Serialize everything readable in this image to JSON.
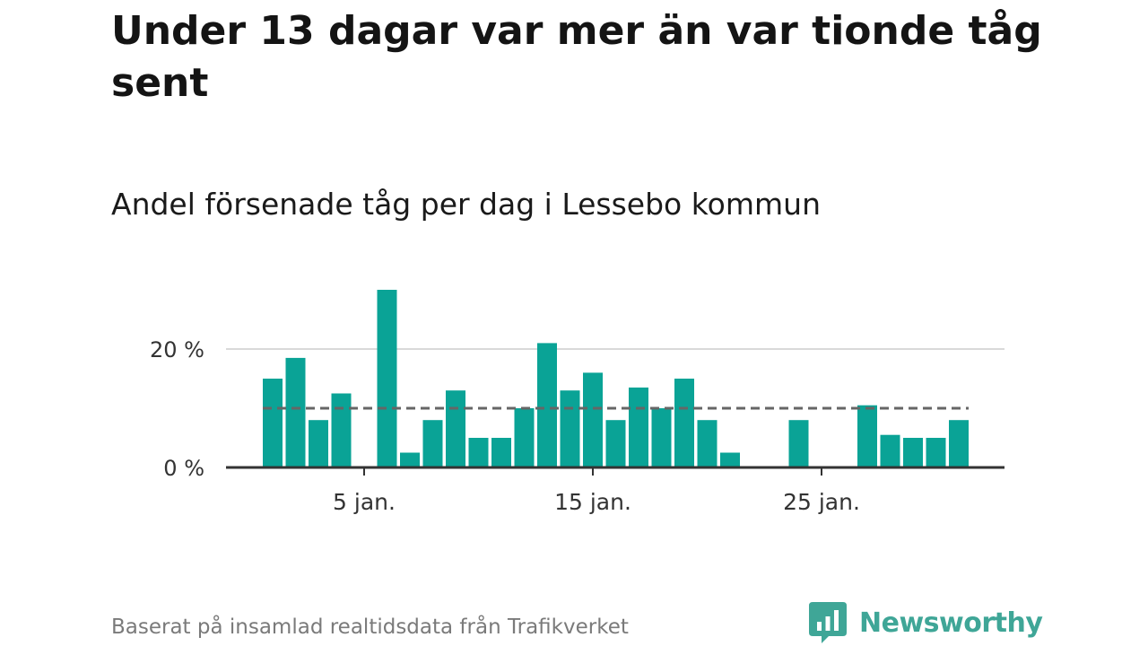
{
  "title": "Under 13 dagar var mer än var tionde tåg sent",
  "subtitle": "Andel försenade tåg per dag i Lessebo kommun",
  "source": "Baserat på insamlad realtidsdata från Trafikverket",
  "logo": {
    "text": "Newsworthy",
    "color": "#3fa697"
  },
  "colors": {
    "bar": "#0aa396",
    "reference_line": "#666666",
    "grid": "#d9d9d9",
    "axis": "#333333"
  },
  "chart_data": {
    "type": "bar",
    "title": "Andel försenade tåg per dag i Lessebo kommun",
    "x": [
      1,
      2,
      3,
      4,
      5,
      6,
      7,
      8,
      9,
      10,
      11,
      12,
      13,
      14,
      15,
      16,
      17,
      18,
      19,
      20,
      21,
      22,
      23,
      24,
      25,
      26,
      27,
      28,
      29,
      30,
      31
    ],
    "values": [
      15,
      18.5,
      8,
      12.5,
      0,
      30,
      2.5,
      8,
      13,
      5,
      5,
      10,
      21,
      13,
      16,
      8,
      13.5,
      10,
      15,
      8,
      2.5,
      0,
      0,
      8,
      0,
      0,
      10.5,
      5.5,
      5,
      5,
      8
    ],
    "x_tick_values": [
      5,
      15,
      25
    ],
    "x_tick_labels": [
      "5 jan.",
      "15 jan.",
      "25 jan."
    ],
    "y_ticks": [
      0,
      20
    ],
    "y_tick_labels": [
      "0 %",
      "20 %"
    ],
    "ylim": [
      0,
      30
    ],
    "reference_line": 10,
    "grid": true,
    "legend": "none"
  }
}
